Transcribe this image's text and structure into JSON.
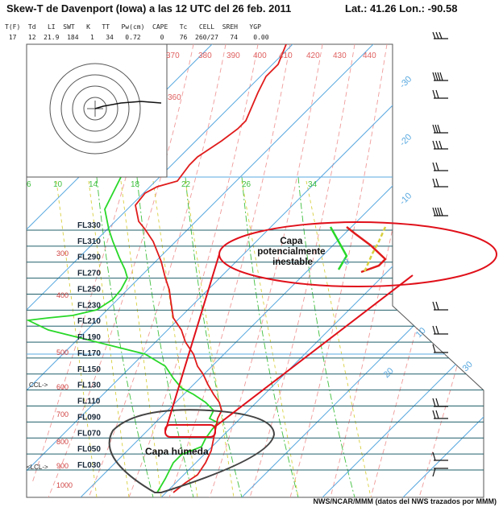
{
  "header": {
    "title": "Skew-T de Davenport (Iowa) a las 12 UTC del 26 feb. 2011",
    "latlon": "Lat.: 41.26  Lon.: -90.58"
  },
  "indices": {
    "labels": "T(F)  Td   LI  SWT   K   TT   Pw(cm)  CAPE   Tc   CELL  SREH   YGP",
    "values": " 17   12  21.9  184   1   34   0.72     0    76  260/27   74    0.00"
  },
  "credit": "NWS/NCAR/MMM (datos del NWS trazados por MMM)",
  "colors": {
    "temperature": "#e01b1b",
    "dewpoint": "#28d828",
    "isotherm": "#5aa9e0",
    "dry_adiabat": "#f09a9a",
    "moist_adiabat": "#3fbf3f",
    "mixing_ratio": "#d8d040",
    "flight_level": "#1f5f6a",
    "annotation": "#e0101a",
    "moist_outline": "#444444"
  },
  "chart_data": {
    "type": "skew-t",
    "station": "Davenport (Iowa)",
    "pressure_axis_hpa": [
      1000,
      900,
      800,
      700,
      600,
      500,
      400,
      300
    ],
    "flight_levels": [
      "FL330",
      "FL310",
      "FL290",
      "FL270",
      "FL250",
      "FL230",
      "FL210",
      "FL190",
      "FL170",
      "FL150",
      "FL130",
      "FL110",
      "FL090",
      "FL070",
      "FL050",
      "FL030"
    ],
    "isotherm_labels": [
      "-30",
      "-20",
      "-10",
      "0",
      "10",
      "20",
      "30"
    ],
    "mixing_ratio_labels": [
      "6",
      "10",
      "14",
      "18",
      "22",
      "26",
      "34"
    ],
    "theta_labels": [
      "370",
      "380",
      "390",
      "400",
      "410",
      "420",
      "430",
      "440",
      "360"
    ],
    "annotations": [
      {
        "name": "capa-potencialmente-inestable",
        "text": "Capa\npotencialmente\ninestable"
      },
      {
        "name": "capa-humeda",
        "text": "Capa húmeda"
      }
    ],
    "level_markers": [
      "CCL->",
      "<LCL->"
    ]
  }
}
